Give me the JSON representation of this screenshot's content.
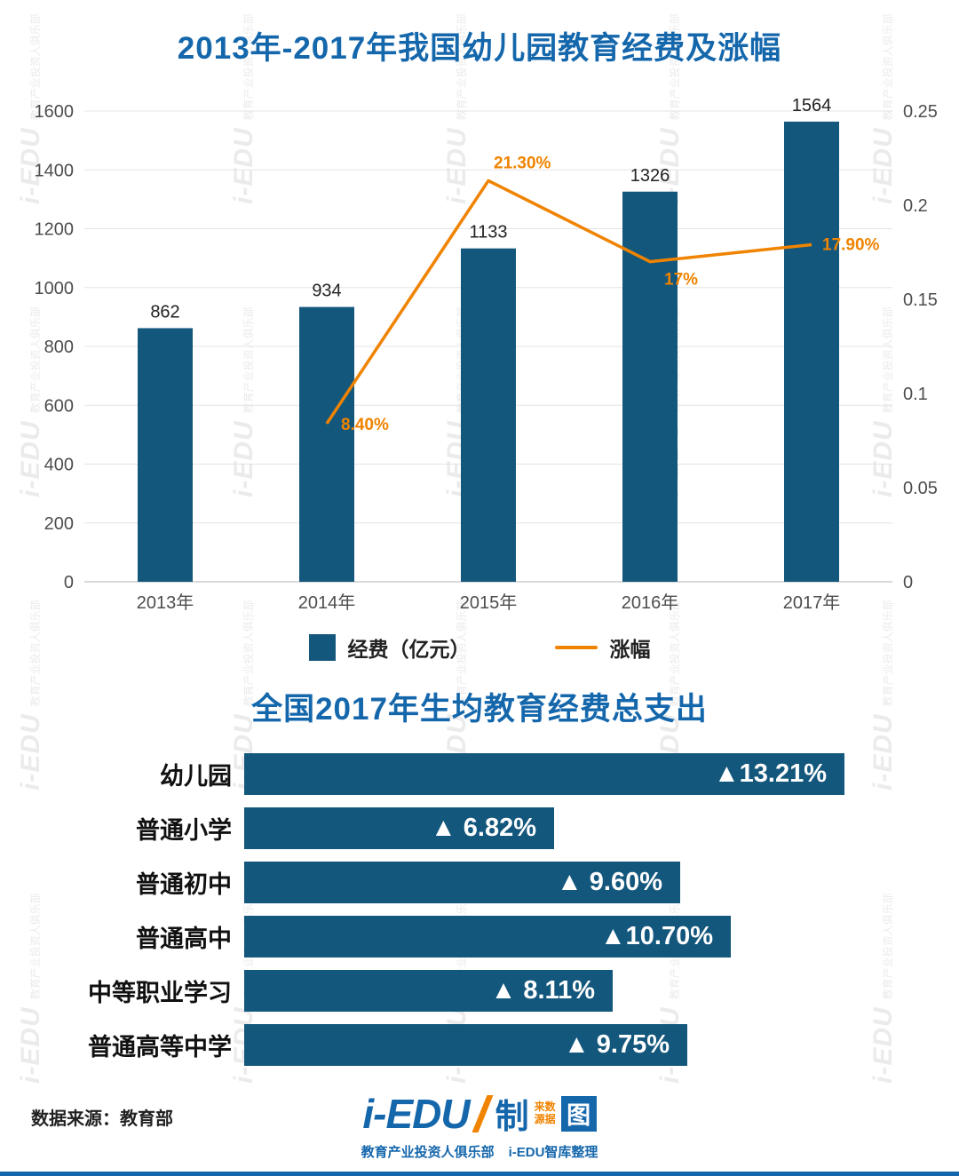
{
  "page": {
    "accent_blue": "#1567ac",
    "bar_color": "#14577d",
    "orange": "#f08300",
    "watermark_text": "i-EDU",
    "watermark_subtext": "教育产业投资人俱乐部"
  },
  "chart_data": [
    {
      "type": "bar+line",
      "title": "2013年-2017年我国幼儿园教育经费及涨幅",
      "categories": [
        "2013年",
        "2014年",
        "2015年",
        "2016年",
        "2017年"
      ],
      "series": [
        {
          "name": "经费（亿元）",
          "type": "bar",
          "axis": "left",
          "color": "#14577d",
          "values": [
            862,
            934,
            1133,
            1326,
            1564
          ]
        },
        {
          "name": "涨幅",
          "type": "line",
          "axis": "right",
          "color": "#f08300",
          "values": [
            null,
            0.084,
            0.213,
            0.17,
            0.179
          ],
          "labels": [
            "",
            "8.40%",
            "21.30%",
            "17%",
            "17.90%"
          ]
        }
      ],
      "left_axis": {
        "min": 0,
        "max": 1600,
        "step": 200,
        "ticks": [
          "0",
          "200",
          "400",
          "600",
          "800",
          "1000",
          "1200",
          "1400",
          "1600"
        ]
      },
      "right_axis": {
        "min": 0,
        "max": 0.25,
        "step": 0.05,
        "ticks": [
          "0",
          "0.05",
          "0.1",
          "0.15",
          "0.2",
          "0.25"
        ]
      },
      "legend_position": "bottom",
      "grid": true
    },
    {
      "type": "bar",
      "orientation": "horizontal",
      "title": "全国2017年生均教育经费总支出",
      "categories": [
        "幼儿园",
        "普通小学",
        "普通初中",
        "普通高中",
        "中等职业学习",
        "普通高等中学"
      ],
      "values": [
        13.21,
        6.82,
        9.6,
        10.7,
        8.11,
        9.75
      ],
      "value_labels": [
        "▲13.21%",
        "▲ 6.82%",
        "▲ 9.60%",
        "▲10.70%",
        "▲ 8.11%",
        "▲ 9.75%"
      ]
    }
  ],
  "footer": {
    "source": "数据来源：教育部",
    "logo_main": "i-EDU",
    "logo_zhi": "制",
    "logo_tu": "图",
    "logo_small_top": "来数",
    "logo_small_bottom": "源据",
    "logo_tagline_left": "教育产业投资人俱乐部",
    "logo_tagline_right": "i-EDU智库整理"
  }
}
